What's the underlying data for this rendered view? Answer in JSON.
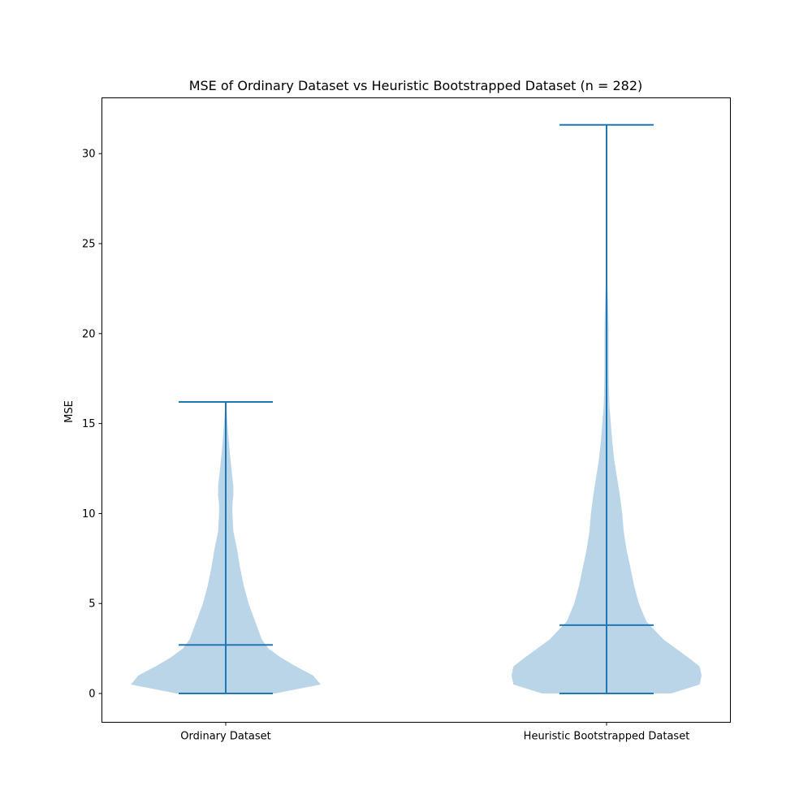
{
  "chart_data": {
    "type": "violin",
    "title": "MSE of Ordinary Dataset vs Heuristic Bootstrapped Dataset (n = 282)",
    "xlabel": "",
    "ylabel": "MSE",
    "ylim": [
      -1.6,
      33.1
    ],
    "yticks": [
      0,
      5,
      10,
      15,
      20,
      25,
      30
    ],
    "grid": false,
    "legend": "none",
    "colors": {
      "body": "#BAD5E8",
      "lines": "#1F77B4"
    },
    "categories": [
      "Ordinary Dataset",
      "Heuristic Bootstrapped Dataset"
    ],
    "series": [
      {
        "category": "Ordinary Dataset",
        "min": 0.0,
        "median": 2.7,
        "max": 16.2,
        "density": [
          [
            0.0,
            0.52
          ],
          [
            0.5,
            1.0
          ],
          [
            1.0,
            0.92
          ],
          [
            1.5,
            0.74
          ],
          [
            2.0,
            0.58
          ],
          [
            2.5,
            0.45
          ],
          [
            3.0,
            0.38
          ],
          [
            4.0,
            0.31
          ],
          [
            5.0,
            0.24
          ],
          [
            6.0,
            0.19
          ],
          [
            7.0,
            0.15
          ],
          [
            8.0,
            0.12
          ],
          [
            9.0,
            0.08
          ],
          [
            10.0,
            0.07
          ],
          [
            10.5,
            0.07
          ],
          [
            11.0,
            0.08
          ],
          [
            11.5,
            0.08
          ],
          [
            12.5,
            0.06
          ],
          [
            13.5,
            0.04
          ],
          [
            14.5,
            0.025
          ],
          [
            15.5,
            0.012
          ],
          [
            16.2,
            0.005
          ]
        ]
      },
      {
        "category": "Heuristic Bootstrapped Dataset",
        "min": 0.0,
        "median": 3.8,
        "max": 31.6,
        "density": [
          [
            0.0,
            0.68
          ],
          [
            0.5,
            0.98
          ],
          [
            1.0,
            1.0
          ],
          [
            1.5,
            0.98
          ],
          [
            2.0,
            0.86
          ],
          [
            3.0,
            0.6
          ],
          [
            4.0,
            0.42
          ],
          [
            5.0,
            0.34
          ],
          [
            6.0,
            0.29
          ],
          [
            7.0,
            0.25
          ],
          [
            8.0,
            0.21
          ],
          [
            9.0,
            0.18
          ],
          [
            10.0,
            0.165
          ],
          [
            11.0,
            0.14
          ],
          [
            12.0,
            0.11
          ],
          [
            13.0,
            0.08
          ],
          [
            14.0,
            0.06
          ],
          [
            15.0,
            0.045
          ],
          [
            16.0,
            0.03
          ],
          [
            17.0,
            0.025
          ],
          [
            18.0,
            0.022
          ],
          [
            19.0,
            0.022
          ],
          [
            20.0,
            0.022
          ],
          [
            21.0,
            0.019
          ],
          [
            22.0,
            0.014
          ],
          [
            23.0,
            0.007
          ],
          [
            23.6,
            0.0
          ]
        ]
      }
    ]
  }
}
